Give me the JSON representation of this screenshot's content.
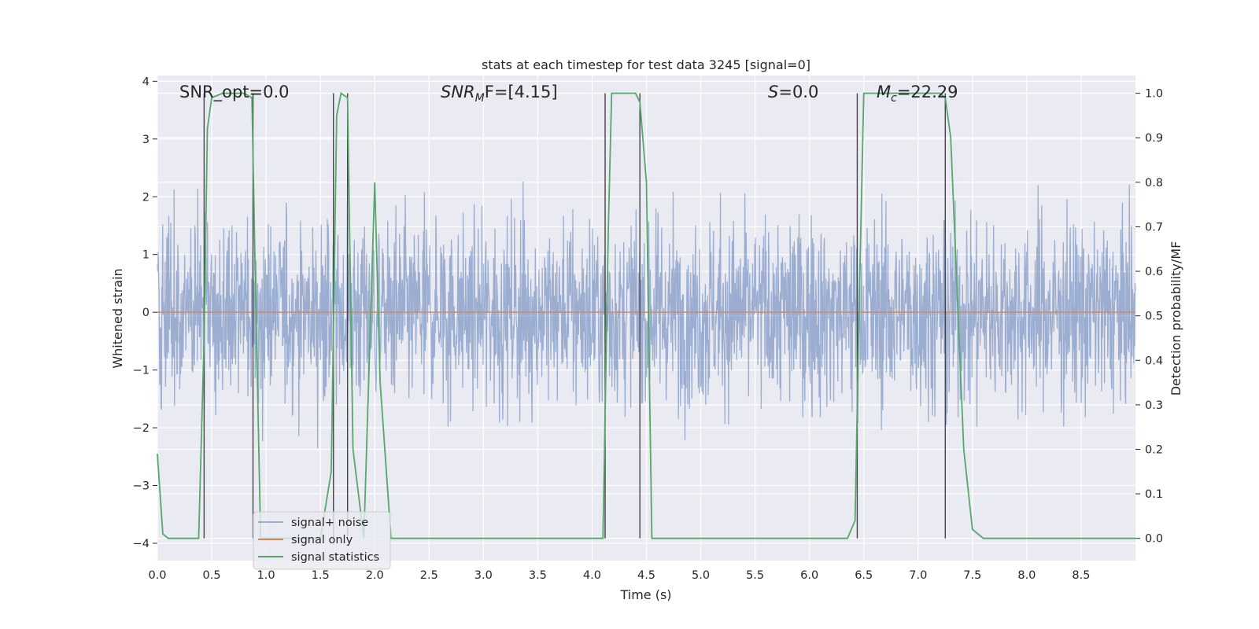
{
  "chart_data": {
    "type": "line",
    "title": "stats at each timestep for test data 3245 [signal=0]",
    "xlabel": "Time (s)",
    "ylabel_left": "Whitened strain",
    "ylabel_right": "Detection probability/MF",
    "xlim": [
      0.0,
      9.0
    ],
    "ylim_left": [
      -4.3,
      4.1
    ],
    "ylim_right": [
      -0.05,
      1.04
    ],
    "x_ticks": [
      "0.0",
      "0.5",
      "1.0",
      "1.5",
      "2.0",
      "2.5",
      "3.0",
      "3.5",
      "4.0",
      "4.5",
      "5.0",
      "5.5",
      "6.0",
      "6.5",
      "7.0",
      "7.5",
      "8.0",
      "8.5"
    ],
    "y_left_ticks": [
      "4",
      "3",
      "2",
      "1",
      "0",
      "−1",
      "−2",
      "−3",
      "−4"
    ],
    "y_right_ticks": [
      "1.0",
      "0.9",
      "0.8",
      "0.7",
      "0.6",
      "0.5",
      "0.4",
      "0.3",
      "0.2",
      "0.1",
      "0.0"
    ],
    "grid": true,
    "legend_position": "lower-left",
    "annotations": {
      "snr_opt": "SNR_opt=0.0",
      "snr_mf_main": "SNR",
      "snr_mf_sub": "M",
      "snr_mf_rest": "F=[4.15]",
      "s_main": "S",
      "s_rest": "=0.0",
      "mc_main": "M",
      "mc_sub": "c",
      "mc_rest": "=22.29"
    },
    "series": [
      {
        "name": "signal+ noise",
        "color": "#4c72b0",
        "opacity": 0.5,
        "description_values": "whitened strain noise, roughly in [-4, 3.6]"
      },
      {
        "name": "signal only",
        "color": "#dd8452",
        "values_constant": 0.0
      },
      {
        "name": "signal statistics",
        "color": "#55a868",
        "axis": "right",
        "x": [
          0.0,
          0.05,
          0.1,
          0.2,
          0.3,
          0.38,
          0.43,
          0.46,
          0.5,
          0.6,
          0.7,
          0.8,
          0.87,
          0.9,
          0.95,
          1.5,
          1.6,
          1.65,
          1.69,
          1.75,
          1.8,
          1.9,
          1.95,
          2.0,
          2.05,
          2.15,
          2.2,
          4.1,
          4.15,
          4.18,
          4.22,
          4.3,
          4.4,
          4.44,
          4.5,
          4.55,
          6.35,
          6.42,
          6.46,
          6.5,
          6.6,
          7.0,
          7.2,
          7.25,
          7.3,
          7.42,
          7.5,
          7.6,
          9.0
        ],
        "values": [
          0.19,
          0.01,
          0.0,
          0.0,
          0.0,
          0.0,
          0.45,
          0.92,
          0.99,
          1.0,
          1.0,
          1.0,
          0.99,
          0.6,
          0.0,
          0.0,
          0.15,
          0.95,
          1.0,
          0.99,
          0.2,
          0.0,
          0.4,
          0.8,
          0.35,
          0.0,
          0.0,
          0.0,
          0.7,
          1.0,
          1.0,
          1.0,
          1.0,
          0.98,
          0.8,
          0.0,
          0.0,
          0.04,
          0.55,
          1.0,
          1.0,
          1.0,
          1.0,
          0.99,
          0.9,
          0.2,
          0.02,
          0.0,
          0.0
        ]
      }
    ],
    "vertical_markers_x": [
      0.43,
      0.88,
      1.62,
      1.75,
      4.12,
      4.44,
      6.44,
      7.25
    ]
  }
}
